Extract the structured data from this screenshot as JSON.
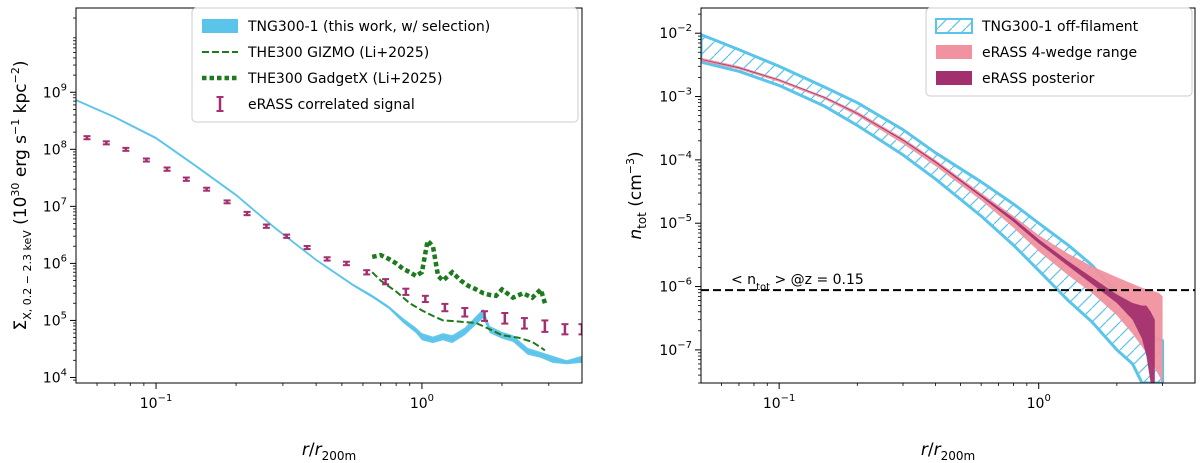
{
  "chart_data": [
    {
      "type": "line",
      "xscale": "log",
      "yscale": "log",
      "xlim": [
        0.05,
        4.0
      ],
      "ylim": [
        8000,
        30000000000
      ],
      "xlabel_parts": [
        "r",
        "/",
        "r",
        "200m"
      ],
      "ylabel_parts": [
        "Σ",
        "X, 0.2 − 2.3 keV",
        " (10",
        "30",
        " erg s",
        "−1",
        " kpc",
        "−2",
        ")"
      ],
      "xticks": [
        {
          "value": 0.1,
          "base": "10",
          "exp": "−1"
        },
        {
          "value": 1,
          "base": "10",
          "exp": "0"
        }
      ],
      "yticks": [
        {
          "value": 10000,
          "base": "10",
          "exp": "4"
        },
        {
          "value": 100000,
          "base": "10",
          "exp": "5"
        },
        {
          "value": 1000000,
          "base": "10",
          "exp": "6"
        },
        {
          "value": 10000000,
          "base": "10",
          "exp": "7"
        },
        {
          "value": 100000000,
          "base": "10",
          "exp": "8"
        },
        {
          "value": 1000000000,
          "base": "10",
          "exp": "9"
        }
      ],
      "legend_position": "top-right",
      "legend": [
        {
          "label": "TNG300-1 (this work, w/ selection)",
          "style": "band",
          "color": "#5bc4ea"
        },
        {
          "label": "THE300 GIZMO (Li+2025)",
          "style": "dashed",
          "color": "#1e7a1e"
        },
        {
          "label": "THE300 GadgetX (Li+2025)",
          "style": "dotted",
          "color": "#1e7a1e"
        },
        {
          "label": "eRASS correlated signal",
          "style": "errorbar",
          "color": "#a2306f"
        }
      ],
      "series": [
        {
          "name": "TNG300-1 (this work, w/ selection)",
          "style": "band",
          "color": "#5bc4ea",
          "x": [
            0.05,
            0.07,
            0.1,
            0.14,
            0.2,
            0.28,
            0.4,
            0.55,
            0.65,
            0.75,
            0.85,
            0.95,
            1.0,
            1.1,
            1.2,
            1.3,
            1.45,
            1.6,
            1.7,
            1.8,
            2.0,
            2.2,
            2.5,
            2.8,
            3.1,
            3.5,
            4.0
          ],
          "lower": [
            700000000,
            350000000,
            150000000,
            50000000,
            15000000,
            4000000,
            1100000,
            400000,
            250000,
            160000,
            90000,
            60000,
            45000,
            40000,
            45000,
            40000,
            55000,
            85000,
            110000,
            60000,
            48000,
            42000,
            25000,
            22000,
            18000,
            17000,
            18000
          ],
          "upper": [
            760000000,
            380000000,
            165000000,
            55000000,
            16500000,
            4400000,
            1200000,
            440000,
            280000,
            180000,
            110000,
            75000,
            60000,
            52000,
            60000,
            55000,
            75000,
            120000,
            160000,
            80000,
            63000,
            55000,
            33000,
            28000,
            24000,
            20000,
            24000
          ]
        },
        {
          "name": "THE300 GIZMO (Li+2025)",
          "style": "dashed",
          "color": "#1e7a1e",
          "x": [
            0.65,
            0.7,
            0.8,
            0.9,
            1.0,
            1.1,
            1.2,
            1.4,
            1.6,
            1.8,
            2.0,
            2.3,
            2.6,
            2.9
          ],
          "y": [
            700000,
            500000,
            320000,
            200000,
            150000,
            120000,
            100000,
            95000,
            90000,
            70000,
            55000,
            50000,
            42000,
            30000
          ]
        },
        {
          "name": "THE300 GadgetX (Li+2025)",
          "style": "dotted",
          "color": "#1e7a1e",
          "x": [
            0.65,
            0.7,
            0.75,
            0.8,
            0.85,
            0.9,
            0.95,
            1.0,
            1.05,
            1.1,
            1.15,
            1.2,
            1.3,
            1.4,
            1.5,
            1.6,
            1.7,
            1.8,
            1.9,
            2.0,
            2.2,
            2.4,
            2.6,
            2.8,
            2.9
          ],
          "y": [
            1300000,
            1400000,
            1200000,
            1000000,
            800000,
            700000,
            600000,
            700000,
            2500000,
            2000000,
            600000,
            500000,
            700000,
            500000,
            400000,
            350000,
            300000,
            280000,
            270000,
            350000,
            250000,
            300000,
            250000,
            350000,
            200000
          ]
        },
        {
          "name": "eRASS correlated signal",
          "style": "errorbar",
          "color": "#a2306f",
          "x": [
            0.055,
            0.065,
            0.077,
            0.092,
            0.11,
            0.13,
            0.155,
            0.185,
            0.22,
            0.26,
            0.31,
            0.37,
            0.44,
            0.52,
            0.62,
            0.73,
            0.87,
            1.03,
            1.22,
            1.45,
            1.72,
            2.05,
            2.43,
            2.9,
            3.45,
            4.0
          ],
          "y": [
            160000000,
            130000000,
            100000000,
            65000000,
            45000000,
            30000000,
            20000000,
            12000000,
            7500000,
            4500000,
            3000000,
            1900000,
            1200000,
            1000000,
            700000,
            480000,
            320000,
            240000,
            170000,
            140000,
            120000,
            110000,
            90000,
            80000,
            70000,
            70000
          ],
          "err_lower": [
            150000000,
            122000000,
            94000000,
            61000000,
            42000000,
            28000000,
            18800000,
            11300000,
            7000000,
            4200000,
            2800000,
            1780000,
            1120000,
            930000,
            640000,
            430000,
            280000,
            210000,
            145000,
            117000,
            98000,
            88000,
            72000,
            63000,
            57000,
            57000
          ],
          "err_upper": [
            170000000,
            138000000,
            106000000,
            69000000,
            48000000,
            32000000,
            21200000,
            12700000,
            8000000,
            4800000,
            3200000,
            2020000,
            1280000,
            1070000,
            760000,
            530000,
            360000,
            270000,
            195000,
            165000,
            145000,
            135000,
            110000,
            100000,
            86000,
            86000
          ]
        }
      ]
    },
    {
      "type": "area",
      "xscale": "log",
      "yscale": "log",
      "xlim": [
        0.05,
        4.0
      ],
      "ylim": [
        3e-08,
        0.025
      ],
      "xlabel_parts": [
        "r",
        "/",
        "r",
        "200m"
      ],
      "ylabel_parts": [
        "n",
        "tot",
        " (cm",
        "−3",
        ")"
      ],
      "xticks": [
        {
          "value": 0.1,
          "base": "10",
          "exp": "−1"
        },
        {
          "value": 1,
          "base": "10",
          "exp": "0"
        }
      ],
      "yticks": [
        {
          "value": 1e-07,
          "base": "10",
          "exp": "−7"
        },
        {
          "value": 1e-06,
          "base": "10",
          "exp": "−6"
        },
        {
          "value": 1e-05,
          "base": "10",
          "exp": "−5"
        },
        {
          "value": 0.0001,
          "base": "10",
          "exp": "−4"
        },
        {
          "value": 0.001,
          "base": "10",
          "exp": "−3"
        },
        {
          "value": 0.01,
          "base": "10",
          "exp": "−2"
        }
      ],
      "legend_position": "top-right",
      "legend": [
        {
          "label": "TNG300-1 off-filament",
          "style": "hatch",
          "color": "#5bc4ea"
        },
        {
          "label": "eRASS 4-wedge range",
          "style": "band",
          "color": "#f0929f"
        },
        {
          "label": "eRASS posterior",
          "style": "band",
          "color": "#a2306f"
        }
      ],
      "hline": {
        "y": 8.8e-07,
        "label_parts": [
          "< n",
          "tot",
          " > @z = 0.15"
        ]
      },
      "series": [
        {
          "name": "TNG300-1 off-filament",
          "style": "hatch",
          "color": "#5bc4ea",
          "x": [
            0.05,
            0.07,
            0.1,
            0.15,
            0.2,
            0.3,
            0.4,
            0.6,
            0.8,
            1.0,
            1.3,
            1.6,
            2.0,
            2.3,
            2.5,
            2.6,
            3.0
          ],
          "lower": [
            0.0035,
            0.0025,
            0.0015,
            0.0007,
            0.00035,
            0.00012,
            5e-05,
            1.3e-05,
            4.5e-06,
            1.8e-06,
            6e-07,
            2.8e-07,
            1e-07,
            6e-08,
            3e-08,
            3e-08,
            3e-08
          ],
          "upper": [
            0.0095,
            0.0055,
            0.003,
            0.0014,
            0.0008,
            0.0003,
            0.00013,
            4.5e-05,
            2e-05,
            1e-05,
            4.5e-06,
            2.2e-06,
            8e-07,
            4e-07,
            2.5e-07,
            1.8e-07,
            1.4e-07
          ]
        },
        {
          "name": "eRASS 4-wedge range",
          "style": "band",
          "color": "#f0929f",
          "x": [
            0.05,
            0.07,
            0.1,
            0.15,
            0.2,
            0.3,
            0.4,
            0.6,
            0.8,
            1.0,
            1.3,
            1.6,
            2.0,
            2.3,
            2.6,
            2.9,
            3.0
          ],
          "lower": [
            0.0036,
            0.0027,
            0.0017,
            0.0009,
            0.0005,
            0.00018,
            8e-05,
            2.3e-05,
            8.5e-06,
            3.6e-06,
            1.5e-06,
            8e-07,
            3.5e-07,
            1.8e-07,
            9e-08,
            4e-08,
            3e-08
          ],
          "upper": [
            0.0041,
            0.003,
            0.0019,
            0.001,
            0.00058,
            0.00022,
            0.0001,
            3e-05,
            1.3e-05,
            6.5e-06,
            3.3e-06,
            2.1e-06,
            1.4e-06,
            1.1e-06,
            9e-07,
            8e-07,
            7e-07
          ]
        },
        {
          "name": "eRASS posterior",
          "style": "band",
          "color": "#a2306f",
          "x": [
            0.05,
            0.07,
            0.1,
            0.15,
            0.2,
            0.3,
            0.4,
            0.6,
            0.8,
            1.0,
            1.3,
            1.6,
            2.0,
            2.3,
            2.5,
            2.6,
            2.7,
            2.8
          ],
          "lower": [
            0.0038,
            0.0028,
            0.0018,
            0.00095,
            0.00053,
            0.0002,
            9e-05,
            2.6e-05,
            1.05e-05,
            4.8e-06,
            2.1e-06,
            1.1e-06,
            5.5e-07,
            3e-07,
            1.5e-07,
            8e-08,
            3e-08,
            3e-08
          ],
          "upper": [
            0.0039,
            0.0029,
            0.00185,
            0.00098,
            0.00055,
            0.00021,
            9.5e-05,
            2.8e-05,
            1.2e-05,
            5.6e-06,
            2.5e-06,
            1.4e-06,
            7.5e-07,
            5.5e-07,
            5e-07,
            5e-07,
            4e-07,
            3e-07
          ]
        }
      ]
    }
  ]
}
